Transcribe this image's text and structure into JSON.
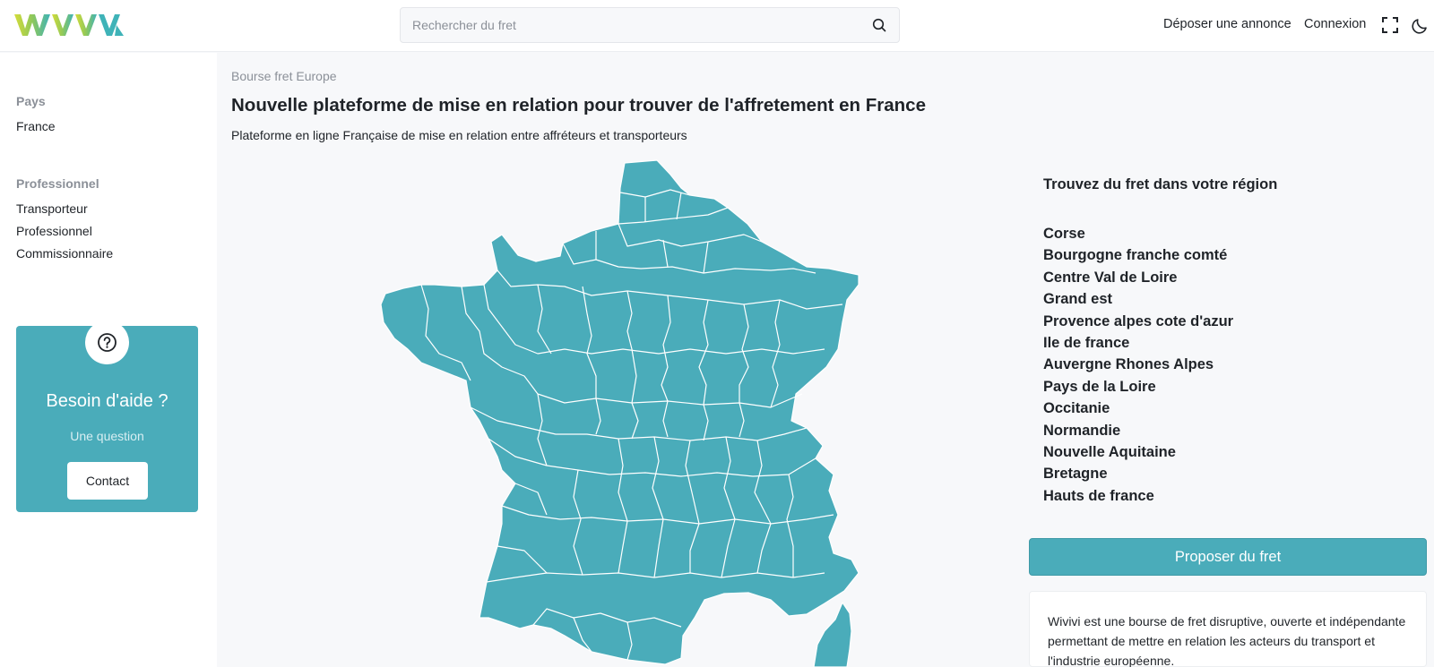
{
  "header": {
    "logo_text": "WIVIVI",
    "search_placeholder": "Rechercher du fret",
    "post_ad_label": "Déposer une annonce",
    "login_label": "Connexion",
    "icons": [
      "search-icon",
      "fullscreen-icon",
      "moon-icon"
    ]
  },
  "sidebar": {
    "country_heading": "Pays",
    "country_items": [
      "France"
    ],
    "pro_heading": "Professionnel",
    "pro_items": [
      "Transporteur",
      "Professionnel",
      "Commissionnaire"
    ],
    "help": {
      "icon": "question-icon",
      "title": "Besoin d'aide ?",
      "subtitle": "Une question",
      "button_label": "Contact"
    }
  },
  "main": {
    "breadcrumb": "Bourse fret Europe",
    "title": "Nouvelle plateforme de mise en relation pour trouver de l'affretement en France",
    "subtitle": "Plateforme en ligne Française de mise en relation entre affréteurs et transporteurs",
    "map": {
      "fill": "#4aacba",
      "stroke": "#ffffff"
    }
  },
  "regions": {
    "heading": "Trouvez du fret dans votre région",
    "items": [
      "Corse",
      "Bourgogne franche comté",
      "Centre Val de Loire",
      "Grand est",
      "Provence alpes cote d'azur",
      "Ile de france",
      "Auvergne Rhones Alpes",
      "Pays de la Loire",
      "Occitanie",
      "Normandie",
      "Nouvelle Aquitaine",
      "Bretagne",
      "Hauts de france"
    ]
  },
  "cta": {
    "propose_label": "Proposer du fret",
    "info_text": "Wivivi est une bourse de fret disruptive, ouverte et indépendante permettant de mettre en relation les acteurs du transport et l'industrie européenne."
  },
  "colors": {
    "accent": "#4aacba",
    "logo_yellow": "#c9d83a",
    "logo_teal": "#3fb3b8"
  }
}
